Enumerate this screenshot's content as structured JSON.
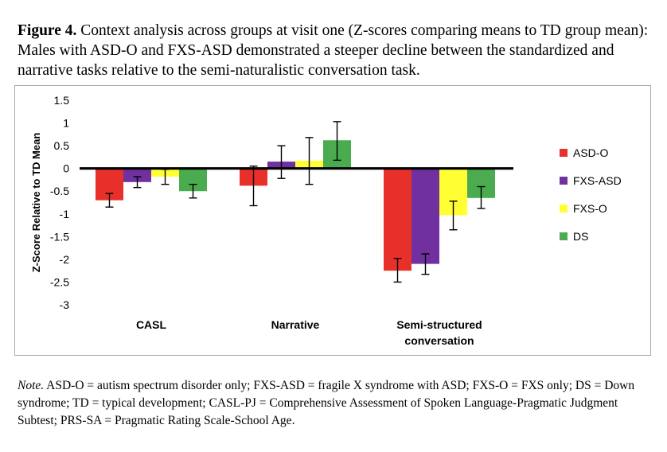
{
  "caption": {
    "label": "Figure 4.",
    "text": " Context analysis across groups at visit one (Z-scores comparing means to TD group mean): Males with ASD-O and FXS-ASD demonstrated a steeper decline between the standardized and narrative tasks relative to the semi-naturalistic conversation task."
  },
  "note": {
    "label": "Note.",
    "text": " ASD-O = autism spectrum disorder only; FXS-ASD = fragile X syndrome with ASD; FXS-O = FXS only; DS = Down syndrome; TD = typical development; CASL-PJ = Comprehensive Assessment of Spoken Language-Pragmatic Judgment Subtest; PRS-SA = Pragmatic Rating Scale-School Age."
  },
  "chart_data": {
    "type": "bar",
    "categories": [
      [
        "CASL"
      ],
      [
        "Narrative"
      ],
      [
        "Semi-structured",
        "conversation"
      ]
    ],
    "ylabel": "Z-Score Relative to TD Mean",
    "ylim": [
      -3,
      1.5
    ],
    "yticks": [
      1.5,
      1,
      0.5,
      0,
      -0.5,
      -1,
      -1.5,
      -2,
      -2.5,
      -3
    ],
    "legend_position": "right",
    "grid": false,
    "series": [
      {
        "name": "ASD-O",
        "color": "#e8302a",
        "values": [
          -0.7,
          -0.38,
          -2.25
        ],
        "err_low": [
          -0.85,
          -0.82,
          -2.5
        ],
        "err_high": [
          -0.55,
          0.05,
          -1.98
        ]
      },
      {
        "name": "FXS-ASD",
        "color": "#7030a0",
        "values": [
          -0.3,
          0.15,
          -2.1
        ],
        "err_low": [
          -0.42,
          -0.22,
          -2.33
        ],
        "err_high": [
          -0.18,
          0.5,
          -1.88
        ]
      },
      {
        "name": "FXS-O",
        "color": "#ffff33",
        "values": [
          -0.18,
          0.17,
          -1.03
        ],
        "err_low": [
          -0.35,
          -0.35,
          -1.35
        ],
        "err_high": [
          -0.02,
          0.68,
          -0.72
        ]
      },
      {
        "name": "DS",
        "color": "#4aac4f",
        "values": [
          -0.5,
          0.62,
          -0.65
        ],
        "err_low": [
          -0.65,
          0.18,
          -0.88
        ],
        "err_high": [
          -0.35,
          1.03,
          -0.4
        ]
      }
    ]
  }
}
